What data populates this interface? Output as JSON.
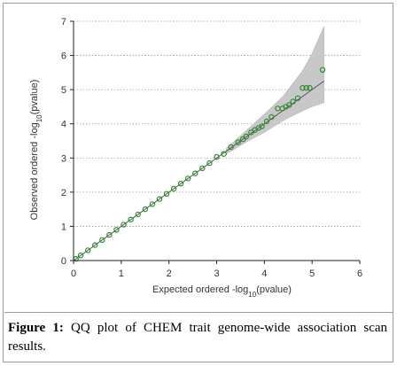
{
  "caption": {
    "label": "Figure 1:",
    "text": "QQ plot of CHEM trait genome-wide association scan results."
  },
  "colors": {
    "points": "#2e8b2e",
    "band": "#c8c8c8",
    "line": "#555555",
    "grid": "#9a9a9a"
  },
  "chart_data": {
    "type": "scatter",
    "xlabel_parts": [
      "Expected ordered -log",
      "10",
      "(pvalue)"
    ],
    "ylabel_parts": [
      "Observed ordered -log",
      "10",
      "(pvalue)"
    ],
    "xlim": [
      0,
      6
    ],
    "ylim": [
      0,
      7
    ],
    "xticks": [
      "0",
      "1",
      "2",
      "3",
      "4",
      "5",
      "6"
    ],
    "yticks": [
      "0",
      "1",
      "2",
      "3",
      "4",
      "5",
      "6",
      "7"
    ],
    "grid": "horizontal-dotted",
    "points": [
      [
        0.05,
        0.05
      ],
      [
        0.15,
        0.15
      ],
      [
        0.3,
        0.3
      ],
      [
        0.45,
        0.45
      ],
      [
        0.6,
        0.6
      ],
      [
        0.75,
        0.75
      ],
      [
        0.9,
        0.9
      ],
      [
        1.05,
        1.05
      ],
      [
        1.2,
        1.2
      ],
      [
        1.35,
        1.35
      ],
      [
        1.5,
        1.5
      ],
      [
        1.65,
        1.65
      ],
      [
        1.8,
        1.8
      ],
      [
        1.95,
        1.95
      ],
      [
        2.1,
        2.1
      ],
      [
        2.25,
        2.25
      ],
      [
        2.4,
        2.4
      ],
      [
        2.55,
        2.55
      ],
      [
        2.7,
        2.7
      ],
      [
        2.85,
        2.85
      ],
      [
        3.0,
        3.03
      ],
      [
        3.15,
        3.12
      ],
      [
        3.3,
        3.32
      ],
      [
        3.45,
        3.46
      ],
      [
        3.55,
        3.55
      ],
      [
        3.62,
        3.63
      ],
      [
        3.72,
        3.75
      ],
      [
        3.8,
        3.82
      ],
      [
        3.88,
        3.88
      ],
      [
        3.95,
        3.93
      ],
      [
        4.05,
        4.07
      ],
      [
        4.15,
        4.2
      ],
      [
        4.28,
        4.45
      ],
      [
        4.38,
        4.45
      ],
      [
        4.45,
        4.5
      ],
      [
        4.52,
        4.55
      ],
      [
        4.6,
        4.65
      ],
      [
        4.7,
        4.75
      ],
      [
        4.8,
        5.05
      ],
      [
        4.88,
        5.05
      ],
      [
        4.95,
        5.05
      ],
      [
        5.22,
        5.58
      ]
    ],
    "line": [
      [
        0,
        0
      ],
      [
        5.25,
        5.25
      ]
    ],
    "band_upper": [
      [
        3.2,
        3.28
      ],
      [
        3.6,
        3.78
      ],
      [
        4.0,
        4.28
      ],
      [
        4.4,
        4.82
      ],
      [
        4.8,
        5.55
      ],
      [
        5.0,
        6.05
      ],
      [
        5.25,
        6.85
      ]
    ],
    "band_lower": [
      [
        3.2,
        3.12
      ],
      [
        3.6,
        3.45
      ],
      [
        4.0,
        3.75
      ],
      [
        4.4,
        4.1
      ],
      [
        4.8,
        4.38
      ],
      [
        5.0,
        4.5
      ],
      [
        5.25,
        4.62
      ]
    ]
  }
}
